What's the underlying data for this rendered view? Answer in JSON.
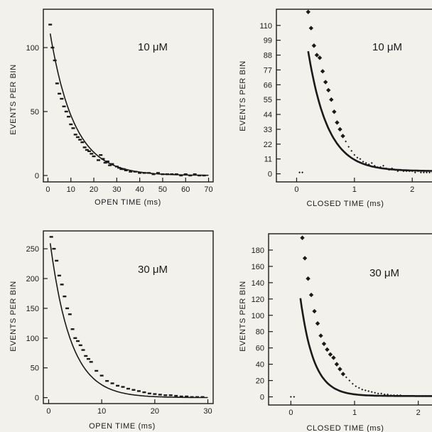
{
  "chart_data": [
    {
      "type": "scatter",
      "xlabel": "OPEN TIME (ms)",
      "ylabel": "EVENTS PER BIN",
      "annotation": "10 μM",
      "xlim": [
        -2,
        72
      ],
      "ylim": [
        -5,
        130
      ],
      "xticks": [
        0,
        10,
        20,
        30,
        40,
        50,
        60,
        70
      ],
      "yticks": [
        0,
        50,
        100
      ],
      "fit": {
        "kind": "exponential",
        "amplitude": 122,
        "tau": 10.5,
        "x_start": 1,
        "x_end": 70
      },
      "series": [
        {
          "values": [
            [
              1,
              118
            ],
            [
              2,
              100
            ],
            [
              3,
              90
            ],
            [
              4,
              72
            ],
            [
              5,
              64
            ],
            [
              6,
              60
            ],
            [
              7,
              54
            ],
            [
              8,
              50
            ],
            [
              9,
              46
            ],
            [
              10,
              40
            ],
            [
              11,
              37
            ],
            [
              12,
              32
            ],
            [
              13,
              30
            ],
            [
              14,
              28
            ],
            [
              15,
              26
            ],
            [
              16,
              22
            ],
            [
              17,
              20
            ],
            [
              18,
              19
            ],
            [
              19,
              17
            ],
            [
              20,
              15
            ],
            [
              22,
              12
            ],
            [
              23,
              16
            ],
            [
              24,
              13
            ],
            [
              25,
              10
            ],
            [
              26,
              11
            ],
            [
              27,
              8
            ],
            [
              28,
              9
            ],
            [
              30,
              7
            ],
            [
              31,
              6
            ],
            [
              32,
              5
            ],
            [
              33,
              5
            ],
            [
              34,
              4
            ],
            [
              36,
              3
            ],
            [
              38,
              3
            ],
            [
              40,
              2
            ],
            [
              42,
              2
            ],
            [
              44,
              2
            ],
            [
              46,
              1
            ],
            [
              48,
              2
            ],
            [
              50,
              1
            ],
            [
              52,
              1
            ],
            [
              54,
              1
            ],
            [
              56,
              1
            ],
            [
              58,
              0
            ],
            [
              60,
              1
            ],
            [
              62,
              0
            ],
            [
              64,
              1
            ],
            [
              66,
              0
            ],
            [
              68,
              0
            ]
          ]
        }
      ]
    },
    {
      "type": "scatter",
      "xlabel": "CLOSED TIME (ms)",
      "ylabel": "EVENTS PER BIN",
      "annotation": "10 μM",
      "xlim": [
        -0.35,
        2.6
      ],
      "ylim": [
        -6,
        122
      ],
      "xticks": [
        0,
        1,
        2
      ],
      "yticks": [
        0,
        11,
        22,
        33,
        44,
        55,
        66,
        77,
        88,
        99,
        110
      ],
      "fit": {
        "kind": "exponential",
        "amplitude": 160,
        "tau": 0.34,
        "offset": 2,
        "x_start": 0.2,
        "x_end": 2.6
      },
      "series": [
        {
          "values": [
            [
              0.05,
              1
            ],
            [
              0.1,
              1
            ],
            [
              0.2,
              120
            ],
            [
              0.25,
              108
            ],
            [
              0.3,
              95
            ],
            [
              0.35,
              88
            ],
            [
              0.4,
              86
            ],
            [
              0.45,
              76
            ],
            [
              0.5,
              68
            ],
            [
              0.55,
              62
            ],
            [
              0.6,
              55
            ],
            [
              0.65,
              46
            ],
            [
              0.7,
              38
            ],
            [
              0.75,
              33
            ],
            [
              0.8,
              28
            ],
            [
              0.85,
              24
            ],
            [
              0.9,
              20
            ],
            [
              0.95,
              17
            ],
            [
              1.0,
              14
            ],
            [
              1.05,
              12
            ],
            [
              1.1,
              11
            ],
            [
              1.15,
              9
            ],
            [
              1.2,
              8
            ],
            [
              1.25,
              7
            ],
            [
              1.3,
              8
            ],
            [
              1.35,
              6
            ],
            [
              1.4,
              5
            ],
            [
              1.45,
              5
            ],
            [
              1.5,
              6
            ],
            [
              1.55,
              4
            ],
            [
              1.6,
              3
            ],
            [
              1.65,
              4
            ],
            [
              1.7,
              3
            ],
            [
              1.75,
              2
            ],
            [
              1.8,
              3
            ],
            [
              1.85,
              2
            ],
            [
              1.9,
              2
            ],
            [
              1.95,
              2
            ],
            [
              2.0,
              2
            ],
            [
              2.05,
              1
            ],
            [
              2.1,
              2
            ],
            [
              2.15,
              1
            ],
            [
              2.2,
              1
            ],
            [
              2.25,
              1
            ],
            [
              2.3,
              1
            ],
            [
              2.35,
              1
            ],
            [
              2.4,
              1
            ],
            [
              2.45,
              1
            ],
            [
              2.5,
              1
            ]
          ]
        }
      ]
    },
    {
      "type": "scatter",
      "xlabel": "OPEN TIME (ms)",
      "ylabel": "EVENTS PER BIN",
      "annotation": "30 μM",
      "xlim": [
        -1,
        31
      ],
      "ylim": [
        -10,
        280
      ],
      "xticks": [
        0,
        10,
        20,
        30
      ],
      "yticks": [
        0,
        50,
        100,
        150,
        200,
        250
      ],
      "fit": {
        "kind": "exponential",
        "amplitude": 280,
        "tau": 3.9,
        "x_start": 0.3,
        "x_end": 30
      },
      "series": [
        {
          "values": [
            [
              0.5,
              270
            ],
            [
              1,
              250
            ],
            [
              1.5,
              230
            ],
            [
              2,
              205
            ],
            [
              2.5,
              190
            ],
            [
              3,
              170
            ],
            [
              3.5,
              150
            ],
            [
              4,
              140
            ],
            [
              4.5,
              115
            ],
            [
              5,
              100
            ],
            [
              5.5,
              95
            ],
            [
              6,
              88
            ],
            [
              6.5,
              80
            ],
            [
              7,
              70
            ],
            [
              7.5,
              65
            ],
            [
              8,
              60
            ],
            [
              9,
              45
            ],
            [
              10,
              37
            ],
            [
              11,
              28
            ],
            [
              12,
              24
            ],
            [
              13,
              20
            ],
            [
              14,
              18
            ],
            [
              15,
              15
            ],
            [
              16,
              13
            ],
            [
              17,
              11
            ],
            [
              18,
              9
            ],
            [
              19,
              7
            ],
            [
              20,
              6
            ],
            [
              21,
              5
            ],
            [
              22,
              4
            ],
            [
              23,
              4
            ],
            [
              24,
              3
            ],
            [
              25,
              2
            ],
            [
              26,
              2
            ],
            [
              27,
              1
            ],
            [
              28,
              1
            ],
            [
              29,
              1
            ]
          ]
        }
      ]
    },
    {
      "type": "scatter",
      "xlabel": "CLOSED TIME (ms)",
      "ylabel": "EVENTS PER BIN",
      "annotation": "30 μM",
      "xlim": [
        -0.35,
        2.45
      ],
      "ylim": [
        -10,
        200
      ],
      "xticks": [
        0,
        1,
        2
      ],
      "yticks": [
        0,
        20,
        40,
        60,
        80,
        100,
        120,
        140,
        160,
        180
      ],
      "fit": {
        "kind": "exponential",
        "amplitude": 245,
        "tau": 0.21,
        "offset": 1,
        "x_start": 0.15,
        "x_end": 2.45
      },
      "series": [
        {
          "values": [
            [
              0.0,
              0
            ],
            [
              0.05,
              0
            ],
            [
              0.18,
              195
            ],
            [
              0.22,
              170
            ],
            [
              0.27,
              145
            ],
            [
              0.32,
              125
            ],
            [
              0.37,
              105
            ],
            [
              0.42,
              90
            ],
            [
              0.47,
              75
            ],
            [
              0.52,
              65
            ],
            [
              0.57,
              58
            ],
            [
              0.62,
              52
            ],
            [
              0.67,
              48
            ],
            [
              0.72,
              40
            ],
            [
              0.77,
              34
            ],
            [
              0.82,
              28
            ],
            [
              0.87,
              24
            ],
            [
              0.92,
              20
            ],
            [
              0.97,
              16
            ],
            [
              1.02,
              13
            ],
            [
              1.07,
              11
            ],
            [
              1.12,
              9
            ],
            [
              1.17,
              8
            ],
            [
              1.22,
              7
            ],
            [
              1.27,
              6
            ],
            [
              1.32,
              5
            ],
            [
              1.37,
              4
            ],
            [
              1.42,
              4
            ],
            [
              1.47,
              3
            ],
            [
              1.52,
              3
            ],
            [
              1.57,
              2
            ],
            [
              1.62,
              2
            ],
            [
              1.67,
              2
            ],
            [
              1.72,
              2
            ],
            [
              1.77,
              1
            ],
            [
              1.82,
              1
            ],
            [
              1.87,
              1
            ],
            [
              1.92,
              1
            ],
            [
              1.97,
              1
            ],
            [
              2.02,
              1
            ],
            [
              2.07,
              1
            ],
            [
              2.12,
              1
            ],
            [
              2.17,
              1
            ],
            [
              2.22,
              1
            ],
            [
              2.27,
              1
            ],
            [
              2.32,
              1
            ],
            [
              2.37,
              1
            ],
            [
              2.42,
              1
            ]
          ]
        }
      ]
    }
  ],
  "colors": {
    "background": "#f3f1ec",
    "ink": "#1a1a1a"
  }
}
